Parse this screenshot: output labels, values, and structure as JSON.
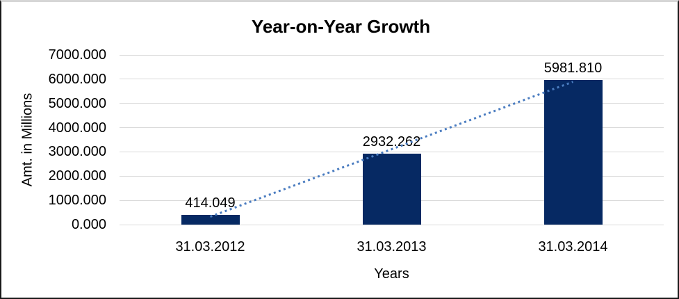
{
  "chart_data": {
    "type": "bar",
    "title": "Year-on-Year Growth",
    "categories": [
      "31.03.2012",
      "31.03.2013",
      "31.03.2014"
    ],
    "values": [
      414.049,
      2932.262,
      5981.81
    ],
    "data_labels": [
      "414.049",
      "2932.262",
      "5981.810"
    ],
    "xlabel": "Years",
    "ylabel": "Amt. in Millions",
    "ylim": [
      0,
      7000
    ],
    "ytick_labels": [
      "0.000",
      "1000.000",
      "2000.000",
      "3000.000",
      "4000.000",
      "5000.000",
      "6000.000",
      "7000.000"
    ],
    "grid": true,
    "legend": "none",
    "colors": {
      "bar": "#062963",
      "gridline": "#d9d9d9",
      "text": "#000000",
      "trendline": "#4a7cc0"
    },
    "trendline": {
      "type": "linear",
      "style": "dotted"
    }
  }
}
